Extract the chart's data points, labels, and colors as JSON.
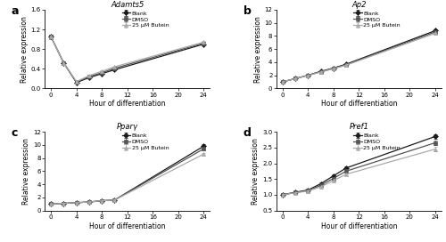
{
  "time_points": [
    0,
    2,
    4,
    6,
    8,
    10,
    24
  ],
  "panel_a": {
    "title": "Adamts5",
    "ylabel": "Relative expression",
    "xlabel": "Hour of differentiation",
    "ylim": [
      0,
      1.6
    ],
    "yticks": [
      0.0,
      0.4,
      0.8,
      1.2,
      1.6
    ],
    "xticks": [
      0,
      4,
      8,
      12,
      16,
      20,
      24
    ],
    "blank": [
      1.05,
      0.52,
      0.12,
      0.22,
      0.3,
      0.38,
      0.9
    ],
    "dmso": [
      1.05,
      0.52,
      0.13,
      0.24,
      0.32,
      0.41,
      0.92
    ],
    "butein": [
      1.05,
      0.52,
      0.14,
      0.26,
      0.35,
      0.44,
      0.94
    ],
    "blank_err": [
      0.04,
      0.02,
      0.01,
      0.01,
      0.01,
      0.01,
      0.03
    ],
    "dmso_err": [
      0.04,
      0.02,
      0.01,
      0.01,
      0.01,
      0.01,
      0.03
    ],
    "butein_err": [
      0.04,
      0.02,
      0.01,
      0.01,
      0.01,
      0.01,
      0.03
    ]
  },
  "panel_b": {
    "title": "Ap2",
    "ylabel": "Relative expression",
    "xlabel": "Hour of differentiation",
    "ylim": [
      0,
      12
    ],
    "yticks": [
      0,
      2,
      4,
      6,
      8,
      10,
      12
    ],
    "xticks": [
      0,
      4,
      8,
      12,
      16,
      20,
      24
    ],
    "blank": [
      1.0,
      1.5,
      2.0,
      2.6,
      3.1,
      3.7,
      8.8
    ],
    "dmso": [
      1.0,
      1.5,
      2.0,
      2.55,
      3.05,
      3.6,
      8.6
    ],
    "butein": [
      1.0,
      1.5,
      1.95,
      2.5,
      3.0,
      3.55,
      8.4
    ],
    "blank_err": [
      0.05,
      0.05,
      0.06,
      0.07,
      0.07,
      0.07,
      0.22
    ],
    "dmso_err": [
      0.05,
      0.05,
      0.06,
      0.07,
      0.07,
      0.07,
      0.22
    ],
    "butein_err": [
      0.05,
      0.05,
      0.06,
      0.07,
      0.07,
      0.07,
      0.22
    ]
  },
  "panel_c": {
    "title": "Pparγ",
    "ylabel": "Relative expression",
    "xlabel": "Hour of differentiation",
    "ylim": [
      0,
      12
    ],
    "yticks": [
      0,
      2,
      4,
      6,
      8,
      10,
      12
    ],
    "xticks": [
      0,
      4,
      8,
      12,
      16,
      20,
      24
    ],
    "blank": [
      1.0,
      1.1,
      1.2,
      1.3,
      1.5,
      1.6,
      9.8
    ],
    "dmso": [
      1.0,
      1.1,
      1.2,
      1.3,
      1.5,
      1.6,
      9.4
    ],
    "butein": [
      1.0,
      1.1,
      1.2,
      1.3,
      1.5,
      1.6,
      8.6
    ],
    "blank_err": [
      0.04,
      0.04,
      0.04,
      0.04,
      0.04,
      0.04,
      0.3
    ],
    "dmso_err": [
      0.04,
      0.04,
      0.04,
      0.04,
      0.04,
      0.04,
      0.25
    ],
    "butein_err": [
      0.04,
      0.04,
      0.04,
      0.04,
      0.04,
      0.04,
      0.2
    ]
  },
  "panel_d": {
    "title": "Pref1",
    "ylabel": "Relative expression",
    "xlabel": "Hour of differentiation",
    "ylim": [
      0.5,
      3.0
    ],
    "yticks": [
      0.5,
      1.0,
      1.5,
      2.0,
      2.5,
      3.0
    ],
    "xticks": [
      0,
      4,
      8,
      12,
      16,
      20,
      24
    ],
    "blank": [
      1.0,
      1.08,
      1.15,
      1.35,
      1.6,
      1.85,
      2.85
    ],
    "dmso": [
      1.0,
      1.07,
      1.13,
      1.3,
      1.52,
      1.75,
      2.65
    ],
    "butein": [
      1.0,
      1.06,
      1.12,
      1.25,
      1.45,
      1.65,
      2.45
    ],
    "blank_err": [
      0.04,
      0.03,
      0.03,
      0.03,
      0.04,
      0.04,
      0.06
    ],
    "dmso_err": [
      0.04,
      0.03,
      0.03,
      0.03,
      0.04,
      0.04,
      0.06
    ],
    "butein_err": [
      0.04,
      0.03,
      0.03,
      0.03,
      0.04,
      0.04,
      0.06
    ]
  },
  "line_colors": [
    "#1a1a1a",
    "#555555",
    "#aaaaaa"
  ],
  "markers": [
    "D",
    "s",
    "^"
  ],
  "markersize": 3.0,
  "linewidth": 0.9,
  "legend_labels": [
    "Blank",
    "DMSO",
    "25 μM Butein"
  ],
  "panel_labels": [
    "a",
    "b",
    "c",
    "d"
  ]
}
